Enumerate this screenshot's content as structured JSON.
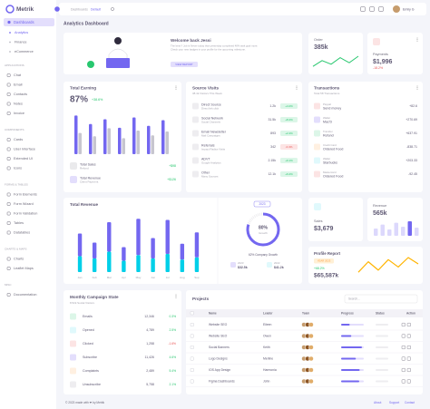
{
  "sidebar": {
    "brand": "Metrik",
    "main": {
      "label": "Dashboards",
      "items": [
        "Analytics",
        "Finance",
        "eCommerce"
      ]
    },
    "sections": [
      {
        "title": "APPLICATIONS",
        "items": [
          "Chat",
          "Email",
          "Contacts",
          "Notes",
          "Invoice"
        ]
      },
      {
        "title": "COMPONENTS",
        "items": [
          "Cards",
          "User Interface",
          "Extended UI",
          "Icons"
        ]
      },
      {
        "title": "FORMS & TABLES",
        "items": [
          "Form Elements",
          "Form Wizard",
          "Form Validation",
          "Tables",
          "Datatables"
        ]
      },
      {
        "title": "CHARTS & MAPS",
        "items": [
          "Charts",
          "Leaflet Maps"
        ]
      },
      {
        "title": "MISC",
        "items": [
          "Documentation"
        ]
      }
    ]
  },
  "topbar": {
    "breadcrumb": [
      "Dashboards",
      "Default"
    ],
    "user": "Emily G"
  },
  "page_title": "Analytics Dashboard",
  "welcome": {
    "title": "Welcome back Jessi",
    "text": [
      "The best !! Job is Never today than yesterday completed 48% task goal more.",
      "Check your new badges in your profile for the upcoming milestone."
    ],
    "button": "VIEW REPORT"
  },
  "order": {
    "label": "Order",
    "value": "385k",
    "trend": [
      12,
      28,
      18,
      36,
      22,
      40
    ]
  },
  "payments": {
    "label": "Payments",
    "value": "$1,996",
    "change": "-18.2%"
  },
  "earning": {
    "title": "Total Earning",
    "value": "87%",
    "change": "+38.6%",
    "series": [
      {
        "color": "#7367f0",
        "values": [
          82,
          64,
          74,
          56,
          78,
          60,
          72
        ]
      },
      {
        "color": "#c7c6cf",
        "values": [
          45,
          38,
          55,
          34,
          50,
          40,
          48
        ]
      }
    ],
    "items": [
      {
        "name": "Total Sales",
        "sub": "Refund",
        "value": "+$98"
      },
      {
        "name": "Total Revenue",
        "sub": "Client Payment",
        "value": "+$126"
      }
    ]
  },
  "sources": {
    "title": "Source Visits",
    "subtitle": "38.4k Visitors This Week",
    "items": [
      {
        "name": "Direct Source",
        "sub": "Direct link click",
        "value": "1.2k",
        "change": "+4.2%"
      },
      {
        "name": "Social Network",
        "sub": "Social Channels",
        "value": "31.5k",
        "change": "+8.2%"
      },
      {
        "name": "Email Newsletter",
        "sub": "Mail Campaigns",
        "value": "893",
        "change": "+2.4%"
      },
      {
        "name": "Referrals",
        "sub": "Impact Radius Visits",
        "value": "342",
        "change": "-0.4%"
      },
      {
        "name": "ADVT",
        "sub": "Google Analytics",
        "value": "2.15k",
        "change": "+9.1%"
      },
      {
        "name": "Other",
        "sub": "Many Sources",
        "value": "12.1k",
        "change": "+6.2%"
      }
    ]
  },
  "transactions": {
    "title": "Transactions",
    "subtitle": "Total 58 Transactions",
    "items": [
      {
        "name": "Paypal",
        "sub": "Send money",
        "value": "+82.6"
      },
      {
        "name": "Wallet",
        "sub": "Mac'D",
        "value": "+270.69"
      },
      {
        "name": "Transfer",
        "sub": "Refund",
        "value": "+637.91"
      },
      {
        "name": "Credit Card",
        "sub": "Ordered Food",
        "value": "-838.71"
      },
      {
        "name": "Wallet",
        "sub": "Starbucks",
        "value": "+203.33"
      },
      {
        "name": "Mastercard",
        "sub": "Ordered Food",
        "value": "-92.45"
      }
    ]
  },
  "revenue_chart": {
    "title": "Total Revenue",
    "categories": [
      "Jan",
      "Feb",
      "Mar",
      "Apr",
      "May",
      "Jun",
      "Jul",
      "Aug",
      "Sep"
    ],
    "series": [
      {
        "color": "#00cfe8",
        "values": [
          14,
          12,
          18,
          10,
          15,
          12,
          16,
          11,
          13
        ]
      },
      {
        "color": "#7367f0",
        "values": [
          20,
          14,
          26,
          12,
          32,
          18,
          30,
          14,
          22
        ]
      }
    ],
    "year": "2023",
    "growth": {
      "value": 80,
      "value_label": "80%",
      "label": "Growth"
    },
    "note": "62% Company Growth",
    "stats": [
      {
        "year": "2023",
        "value": "$32.5k"
      },
      {
        "year": "2022",
        "value": "$41.2k"
      }
    ]
  },
  "sales": {
    "label": "Sales",
    "value": "$3,679"
  },
  "revenue": {
    "label": "Revenue",
    "value": "565k",
    "bars": [
      40,
      62,
      35,
      72,
      50,
      80,
      45
    ]
  },
  "profile": {
    "title": "Profile Report",
    "badge": "YEAR 2023",
    "change": "+68.2%",
    "value": "$65,587k",
    "trend": [
      10,
      30,
      14,
      34,
      20,
      38,
      26
    ]
  },
  "campaign": {
    "title": "Monthly Campaign State",
    "subtitle": "8.52k Social Visitors",
    "items": [
      {
        "name": "Emails",
        "value": "12,346",
        "change": "0.3%"
      },
      {
        "name": "Opened",
        "value": "4,789",
        "change": "2.5%"
      },
      {
        "name": "Clicked",
        "value": "1,258",
        "change": "-1.6%"
      },
      {
        "name": "Subscribe",
        "value": "11,426",
        "change": "4.6%"
      },
      {
        "name": "Complaints",
        "value": "2,489",
        "change": "5.4%"
      },
      {
        "name": "Unsubscribe",
        "value": "5,758",
        "change": "2.1%"
      }
    ]
  },
  "projects": {
    "title": "Projects",
    "search": "Search...",
    "columns": [
      "Name",
      "Leader",
      "Team",
      "Progress",
      "Status",
      "Action"
    ],
    "rows": [
      {
        "name": "Website SEO",
        "leader": "Eileen",
        "progress": 38
      },
      {
        "name": "Website SEO",
        "leader": "Owen",
        "progress": 45
      },
      {
        "name": "Social Banners",
        "leader": "Keith",
        "progress": 92
      },
      {
        "name": "Logo Designs",
        "leader": "Merline",
        "progress": 65
      },
      {
        "name": "IOS App Design",
        "leader": "Harmonia",
        "progress": 82
      },
      {
        "name": "Figma Dashboards",
        "leader": "John",
        "progress": 80
      }
    ]
  },
  "footer": {
    "copyright": "© 2023 made with ❤ by Metrik",
    "links": [
      "About",
      "Support",
      "Contact"
    ]
  }
}
